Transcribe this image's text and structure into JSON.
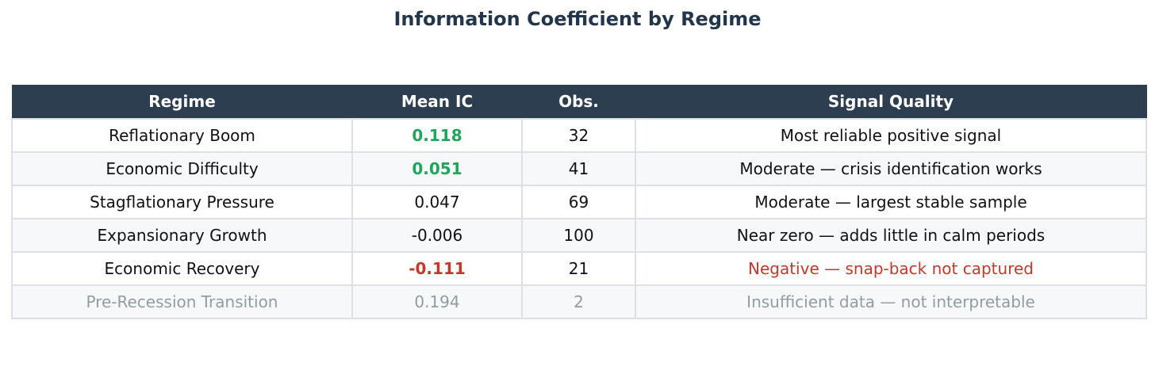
{
  "chart_data": {
    "type": "table",
    "title": "Information Coefficient by Regime",
    "columns": [
      "Regime",
      "Mean IC",
      "Obs.",
      "Signal Quality"
    ],
    "rows": [
      {
        "regime": "Reflationary Boom",
        "mean_ic": "0.118",
        "obs": "32",
        "signal_quality": "Most reliable positive signal",
        "style": "positive"
      },
      {
        "regime": "Economic Difficulty",
        "mean_ic": "0.051",
        "obs": "41",
        "signal_quality": "Moderate — crisis identification works",
        "style": "positive"
      },
      {
        "regime": "Stagflationary Pressure",
        "mean_ic": "0.047",
        "obs": "69",
        "signal_quality": "Moderate — largest stable sample",
        "style": "neutral"
      },
      {
        "regime": "Expansionary Growth",
        "mean_ic": "-0.006",
        "obs": "100",
        "signal_quality": "Near zero — adds little in calm periods",
        "style": "neutral"
      },
      {
        "regime": "Economic Recovery",
        "mean_ic": "-0.111",
        "obs": "21",
        "signal_quality": "Negative — snap-back not captured",
        "style": "negative"
      },
      {
        "regime": "Pre-Recession Transition",
        "mean_ic": "0.194",
        "obs": "2",
        "signal_quality": "Insufficient data — not interpretable",
        "style": "muted"
      }
    ],
    "colors": {
      "header_bg": "#2c3e50",
      "positive": "#20a55a",
      "negative": "#c0392b",
      "muted": "#919d9e"
    }
  }
}
